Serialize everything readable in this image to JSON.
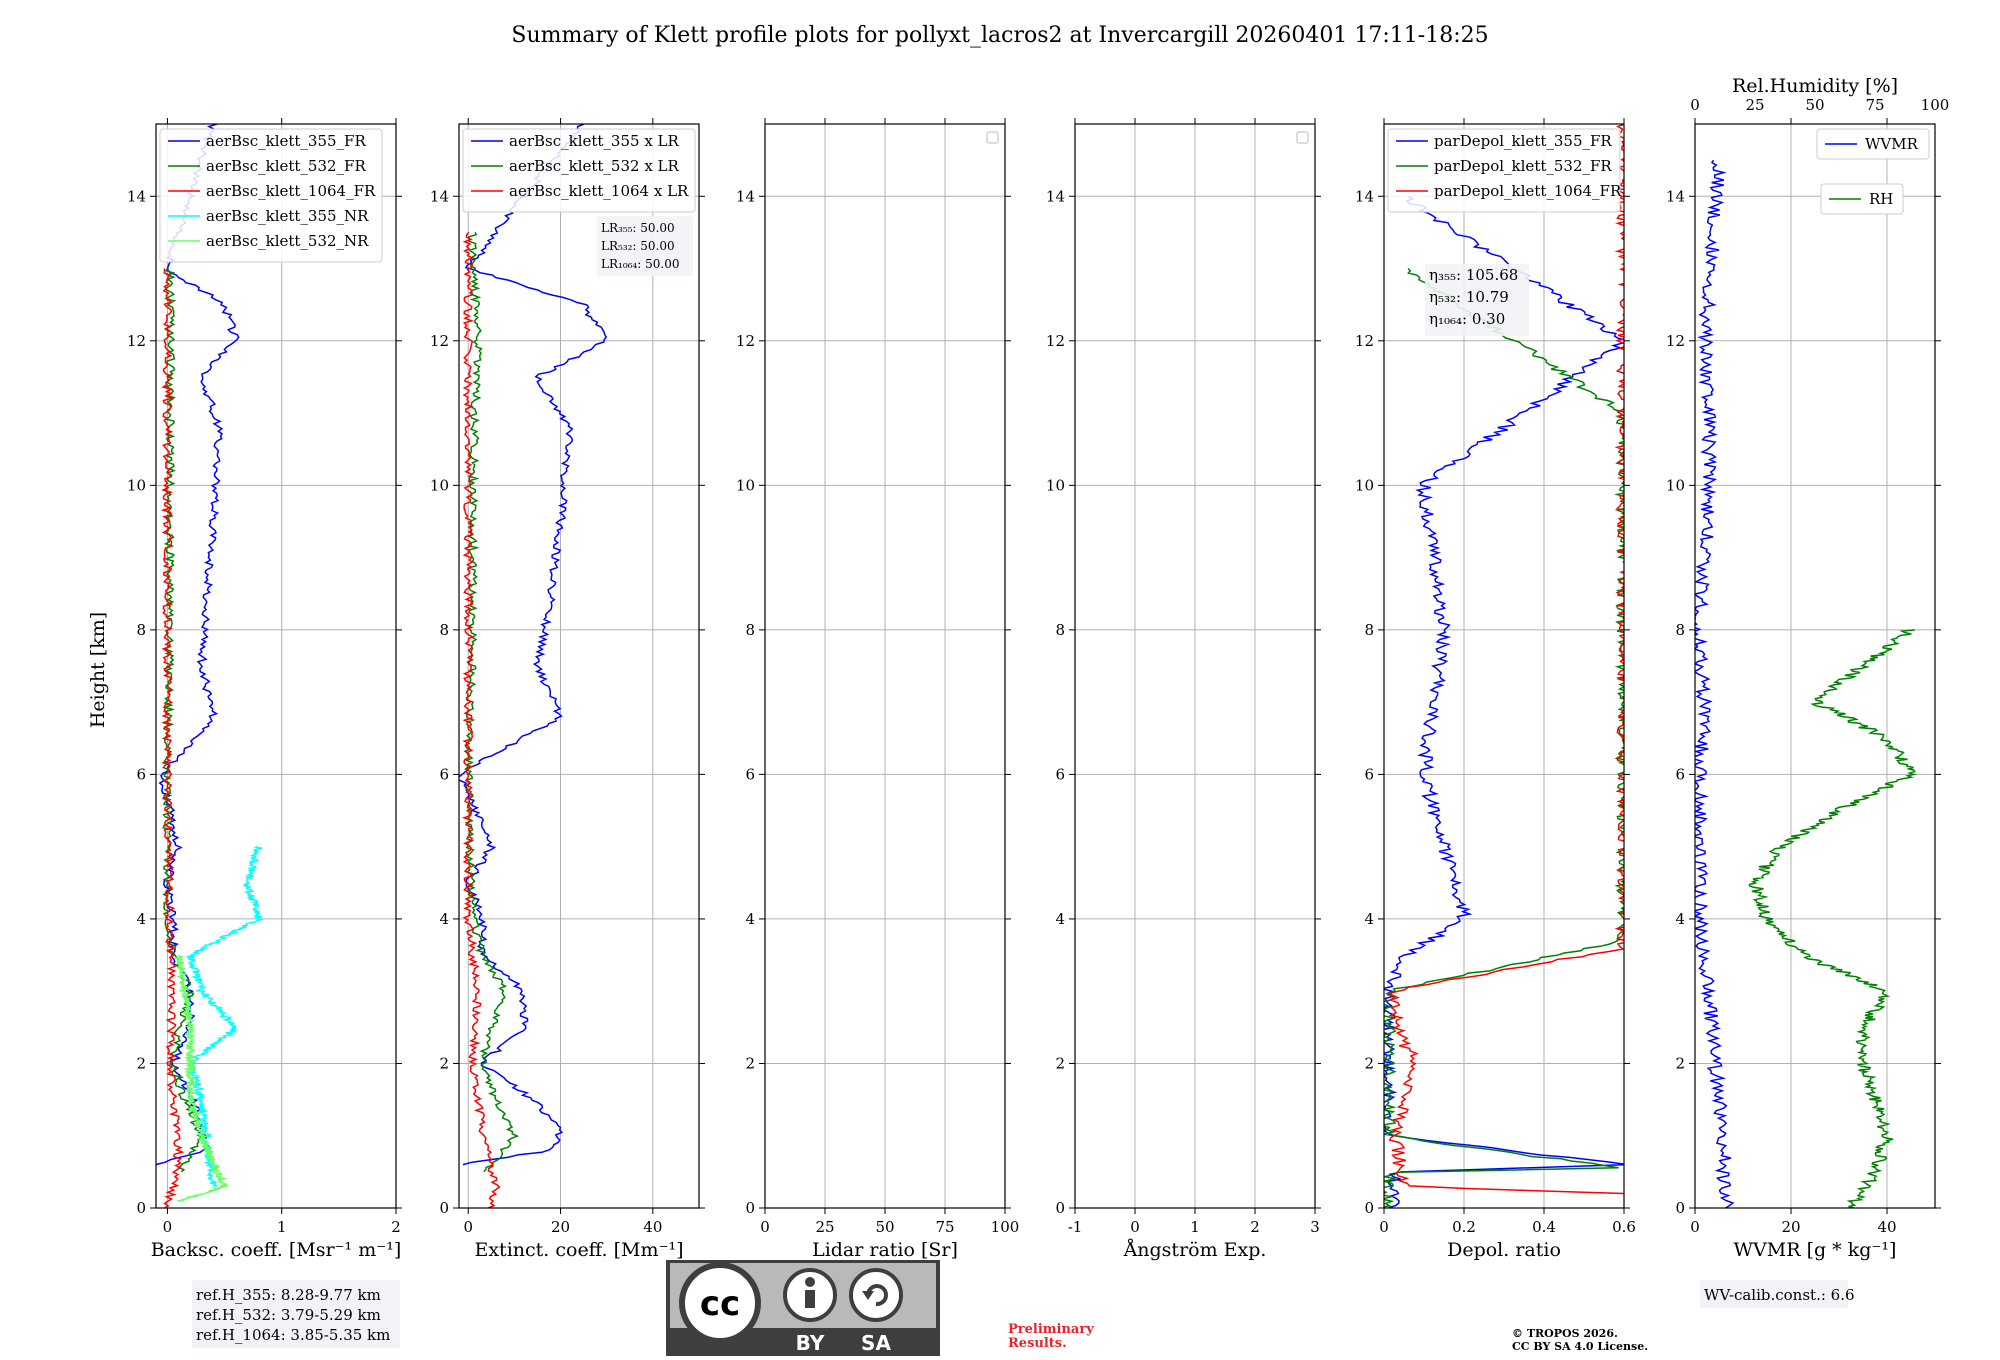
{
  "chart_data": {
    "type": "line",
    "title": "Summary of Klett profile plots for pollyxt_lacros2 at Invercargill 20260401 17:11-18:25",
    "ylabel": "Height [km]",
    "ylim": [
      0,
      15
    ],
    "yticks": [
      0,
      2,
      4,
      6,
      8,
      10,
      12,
      14
    ],
    "panels": [
      {
        "id": "bsc",
        "xlabel": "Backsc. coeff. [Msr⁻¹ m⁻¹]",
        "xlim": [
          -0.1,
          2
        ],
        "xticks": [
          0,
          1,
          2
        ],
        "legend": [
          "aerBsc_klett_355_FR",
          "aerBsc_klett_532_FR",
          "aerBsc_klett_1064_FR",
          "aerBsc_klett_355_NR",
          "aerBsc_klett_532_NR"
        ],
        "series": [
          {
            "name": "aerBsc_klett_355_FR",
            "color": "#0000ff",
            "h": [
              0.6,
              0.8,
              1.1,
              1.5,
              2.0,
              2.5,
              3.0,
              3.5,
              4.0,
              4.5,
              5.0,
              6.0,
              6.8,
              7.5,
              8.5,
              9.5,
              10.8,
              11.5,
              12.0,
              12.5,
              13.0,
              14.0,
              15.0
            ],
            "v": [
              -0.1,
              0.35,
              0.3,
              0.22,
              0.05,
              0.2,
              0.2,
              0.05,
              0.05,
              0.0,
              0.1,
              -0.05,
              0.4,
              0.3,
              0.35,
              0.4,
              0.45,
              0.3,
              0.6,
              0.5,
              0.0,
              0.2,
              0.4
            ]
          },
          {
            "name": "aerBsc_klett_532_FR",
            "color": "#008000",
            "h": [
              0.5,
              1.0,
              1.5,
              2.0,
              2.5,
              3.0,
              3.5,
              4.0,
              6.0,
              8.0,
              10.0,
              12.0,
              13.0
            ],
            "v": [
              0.1,
              0.3,
              0.15,
              0.05,
              0.1,
              0.2,
              0.05,
              0.0,
              0.0,
              0.02,
              0.02,
              0.03,
              0.02
            ]
          },
          {
            "name": "aerBsc_klett_1064_FR",
            "color": "#ff0000",
            "h": [
              0.0,
              0.3,
              0.8,
              1.5,
              2.0,
              3.0,
              4.0,
              6.0,
              8.0,
              10.0,
              13.0
            ],
            "v": [
              0.0,
              0.05,
              0.1,
              0.05,
              0.03,
              0.04,
              0.02,
              0.0,
              0.0,
              0.0,
              0.0
            ]
          },
          {
            "name": "aerBsc_klett_355_NR",
            "color": "#00ffff",
            "h": [
              0.3,
              0.8,
              1.5,
              2.0,
              2.5,
              3.0,
              3.5,
              4.0,
              4.5,
              5.0
            ],
            "v": [
              0.4,
              0.35,
              0.3,
              0.2,
              0.6,
              0.3,
              0.2,
              0.8,
              0.7,
              0.8
            ]
          },
          {
            "name": "aerBsc_klett_532_NR",
            "color": "#66ff66",
            "h": [
              0.1,
              0.3,
              0.8,
              1.5,
              2.5,
              3.5
            ],
            "v": [
              0.1,
              0.5,
              0.35,
              0.2,
              0.2,
              0.1
            ]
          }
        ],
        "annotation": "",
        "below": [
          "ref.H_355: 8.28-9.77 km",
          "ref.H_532: 3.79-5.29 km",
          "ref.H_1064: 3.85-5.35 km"
        ]
      },
      {
        "id": "ext",
        "xlabel": "Extinct. coeff. [Mm⁻¹]",
        "xlim": [
          -2,
          50
        ],
        "xticks": [
          0,
          20,
          40
        ],
        "legend": [
          "aerBsc_klett_355 x LR",
          "aerBsc_klett_532 x LR",
          "aerBsc_klett_1064 x LR"
        ],
        "series": [
          {
            "name": "aerBsc_klett_355 x LR",
            "color": "#0000ff",
            "h": [
              0.6,
              0.8,
              1.1,
              1.5,
              2.0,
              2.5,
              3.0,
              3.5,
              4.0,
              4.5,
              5.0,
              6.0,
              6.8,
              7.5,
              8.5,
              9.5,
              10.8,
              11.5,
              12.0,
              12.5,
              13.0,
              14.0,
              15.0
            ],
            "v": [
              -2,
              18,
              20,
              14,
              3,
              12,
              12,
              3,
              3,
              0,
              5,
              -2,
              20,
              15,
              18,
              20,
              22,
              15,
              30,
              25,
              0,
              12,
              25
            ]
          },
          {
            "name": "aerBsc_klett_532 x LR",
            "color": "#008000",
            "h": [
              0.5,
              1.0,
              1.5,
              2.0,
              2.5,
              3.0,
              3.5,
              4.0,
              6.0,
              8.0,
              10.0,
              12.0,
              13.5
            ],
            "v": [
              4,
              10,
              6,
              3,
              5,
              8,
              3,
              1,
              0,
              1,
              1,
              2,
              1
            ]
          },
          {
            "name": "aerBsc_klett_1064 x LR",
            "color": "#ff0000",
            "h": [
              0.0,
              0.3,
              0.8,
              1.5,
              2.0,
              3.0,
              3.5,
              4.0,
              6.0,
              8.0,
              10.0,
              13.5
            ],
            "v": [
              5,
              6,
              4,
              2,
              1,
              2,
              1,
              0,
              0,
              0,
              0,
              0
            ]
          }
        ],
        "annotation": [
          "LR₃₅₅: 50.00",
          "LR₅₃₂: 50.00",
          "LR₁₀₆₄: 50.00"
        ],
        "below": []
      },
      {
        "id": "lr",
        "xlabel": "Lidar ratio [Sr]",
        "xlim": [
          0,
          100
        ],
        "xticks": [
          0,
          25,
          50,
          75,
          100
        ],
        "legend": [],
        "series": [],
        "annotation": "",
        "below": []
      },
      {
        "id": "ae",
        "xlabel": "Ångström Exp.",
        "xlim": [
          -1,
          3
        ],
        "xticks": [
          -1,
          0,
          1,
          2,
          3
        ],
        "legend": [],
        "series": [],
        "annotation": "",
        "below": []
      },
      {
        "id": "depol",
        "xlabel": "Depol. ratio",
        "xlim": [
          0,
          0.6
        ],
        "xticks": [
          0.0,
          0.2,
          0.4,
          0.6
        ],
        "legend": [
          "parDepol_klett_355_FR",
          "parDepol_klett_532_FR",
          "parDepol_klett_1064_FR"
        ],
        "series": [
          {
            "name": "parDepol_klett_355_FR",
            "color": "#0000ff",
            "h": [
              0.0,
              0.5,
              0.6,
              1.0,
              2.0,
              3.0,
              3.5,
              4.0,
              6.0,
              8.0,
              10.0,
              12.0,
              14.0
            ],
            "v": [
              0.02,
              0.03,
              0.6,
              0.01,
              0.01,
              0.01,
              0.05,
              0.2,
              0.1,
              0.15,
              0.1,
              0.6,
              0.05
            ]
          },
          {
            "name": "parDepol_klett_532_FR",
            "color": "#008000",
            "h": [
              0.0,
              0.5,
              0.55,
              1.0,
              2.0,
              3.0,
              3.7,
              5.0,
              7.0,
              9.0,
              11.0,
              13.0
            ],
            "v": [
              0.0,
              0.02,
              0.6,
              0.01,
              0.01,
              0.01,
              0.6,
              0.6,
              0.6,
              0.6,
              0.6,
              0.05
            ]
          },
          {
            "name": "parDepol_klett_1064_FR",
            "color": "#ff0000",
            "h": [
              0.2,
              0.3,
              0.5,
              1.0,
              2.0,
              2.5,
              3.0,
              3.6,
              5.0,
              7.0,
              10.0,
              12.5,
              15.0
            ],
            "v": [
              0.6,
              0.06,
              0.04,
              0.03,
              0.08,
              0.03,
              0.02,
              0.6,
              0.6,
              0.6,
              0.6,
              0.6,
              0.6
            ]
          }
        ],
        "annotation": [
          "η₃₅₅: 105.68",
          "η₅₃₂: 10.79",
          "η₁₀₆₄: 0.30"
        ],
        "below": []
      },
      {
        "id": "wv",
        "xlabel": "WVMR [g * kg⁻¹]",
        "xlim": [
          0,
          50
        ],
        "xticks": [
          0,
          20,
          40
        ],
        "top_label": "Rel.Humidity [%]",
        "top_xlim": [
          0,
          100
        ],
        "top_xticks": [
          0,
          25,
          50,
          75,
          100
        ],
        "legend": [
          "WVMR",
          "RH"
        ],
        "series": [
          {
            "name": "WVMR",
            "color": "#0000ff",
            "axis": "bottom",
            "h": [
              0.0,
              0.5,
              1.0,
              1.5,
              2.0,
              3.0,
              4.0,
              5.0,
              6.0,
              7.0,
              8.0,
              9.0,
              10.0,
              11.0,
              12.0,
              14.5
            ],
            "v": [
              7,
              6,
              6,
              5,
              4,
              3,
              1,
              1,
              1,
              2,
              0.5,
              2,
              3,
              3,
              2,
              5
            ]
          },
          {
            "name": "RH",
            "color": "#008000",
            "axis": "top",
            "h": [
              0.0,
              0.5,
              1.0,
              1.5,
              2.0,
              2.5,
              3.0,
              3.5,
              4.0,
              4.5,
              5.0,
              5.5,
              6.0,
              6.5,
              7.0,
              7.5,
              8.0
            ],
            "v": [
              65,
              75,
              80,
              75,
              70,
              70,
              80,
              45,
              30,
              25,
              35,
              60,
              90,
              80,
              50,
              70,
              90
            ]
          }
        ],
        "annotation": "",
        "below": [
          "WV-calib.const.: 6.6"
        ]
      }
    ]
  },
  "license": {
    "cc": "cc",
    "by": "BY",
    "sa": "SA"
  },
  "footer": {
    "preliminary": [
      "Preliminary",
      "Results."
    ],
    "copyright": [
      "© TROPOS 2026.",
      "CC BY SA 4.0 License."
    ]
  },
  "colors": {
    "grid": "#b0b0b0",
    "axis": "#000000",
    "legend_bg": "#f2f3f6",
    "license_gray": "#b8bab8",
    "license_dark": "#3e3e3e"
  }
}
